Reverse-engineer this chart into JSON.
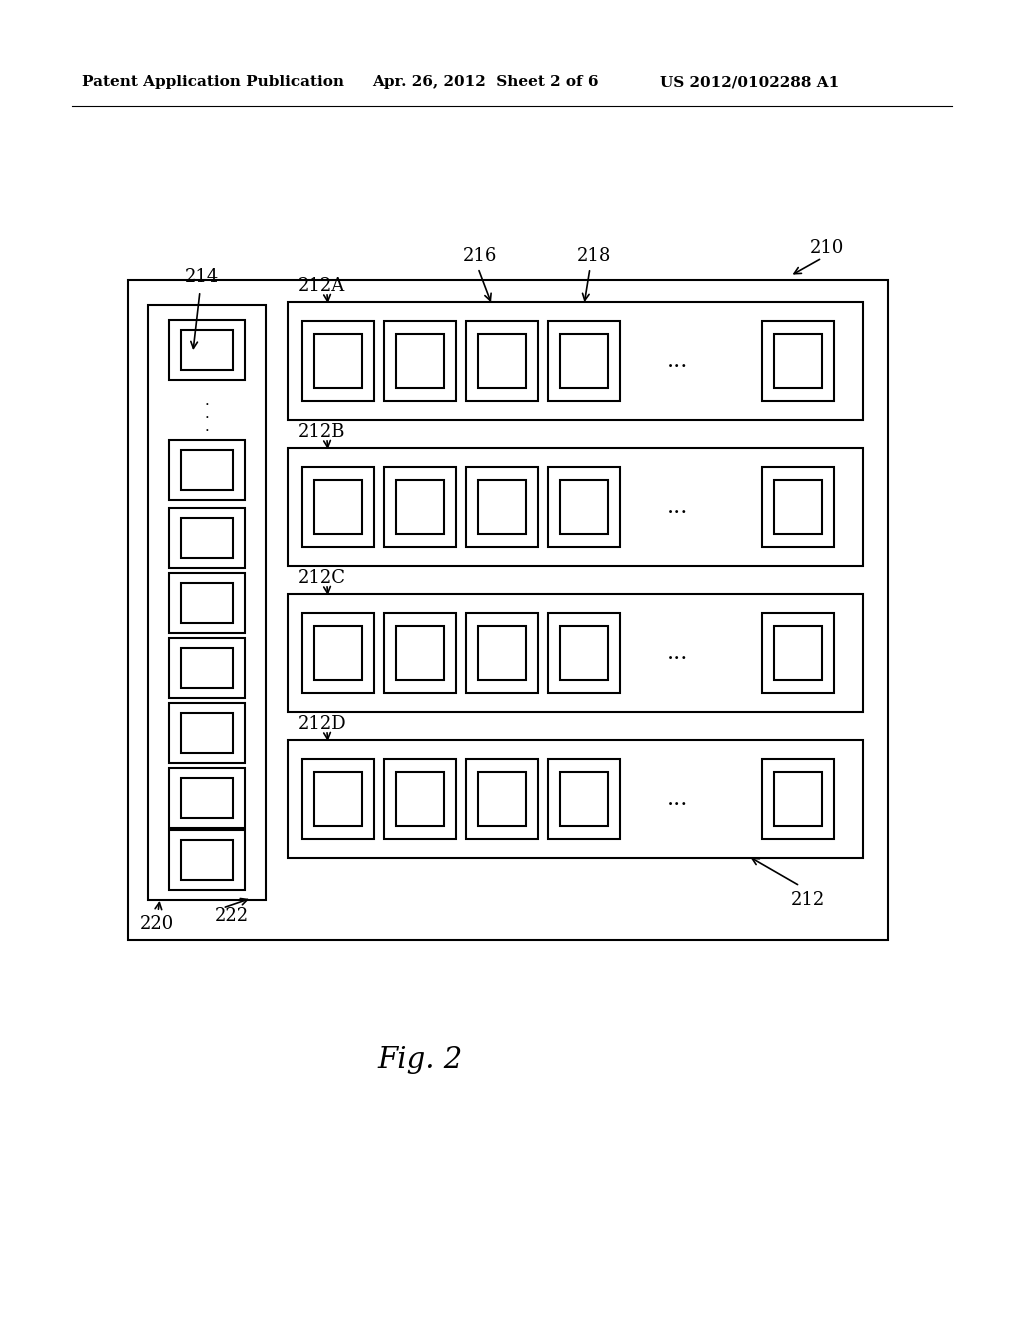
{
  "bg_color": "#ffffff",
  "header_left": "Patent Application Publication",
  "header_center": "Apr. 26, 2012  Sheet 2 of 6",
  "header_right": "US 2012/0102288 A1",
  "fig_label": "Fig. 2",
  "label_210": "210",
  "label_214": "214",
  "label_220": "220",
  "label_222": "222",
  "label_212": "212",
  "label_212A": "212A",
  "label_212B": "212B",
  "label_212C": "212C",
  "label_212D": "212D",
  "label_216": "216",
  "label_218": "218"
}
